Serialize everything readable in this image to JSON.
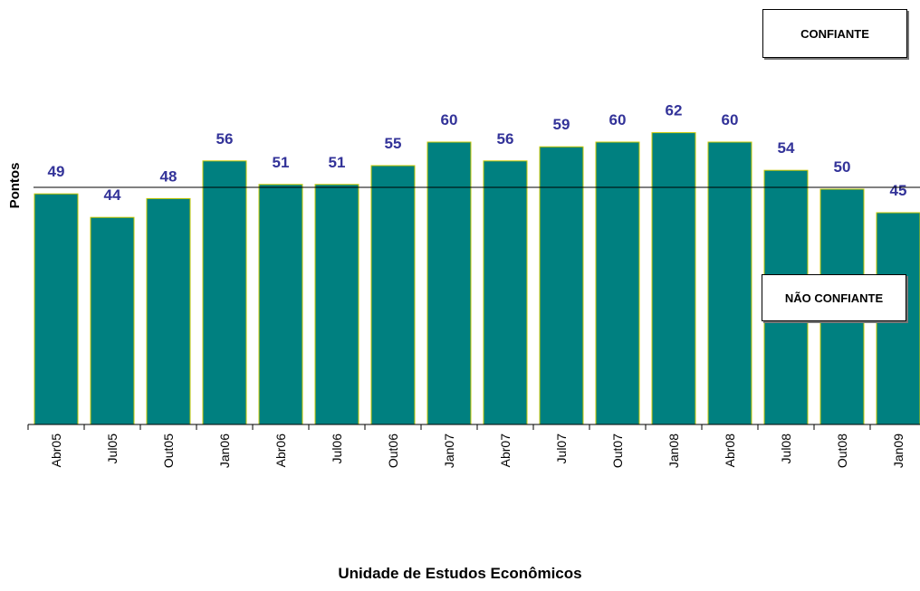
{
  "chart_data": {
    "type": "bar",
    "categories": [
      "Abr05",
      "Jul05",
      "Out05",
      "Jan06",
      "Abr06",
      "Jul06",
      "Out06",
      "Jan07",
      "Abr07",
      "Jul07",
      "Out07",
      "Jan08",
      "Abr08",
      "Jul08",
      "Out08",
      "Jan09"
    ],
    "values": [
      49,
      44,
      48,
      56,
      51,
      51,
      55,
      60,
      56,
      59,
      60,
      62,
      60,
      54,
      50,
      45
    ],
    "ylabel": "Pontos",
    "xlabel": "",
    "reference_line": 50,
    "grid": false,
    "colors": {
      "bar": "#008080",
      "bar_border": "#c8c800",
      "value_label": "#333399"
    }
  },
  "annotations": {
    "confiante": "CONFIANTE",
    "nao_confiante": "NÃO CONFIANTE"
  },
  "footer": "Unidade de Estudos Econômicos"
}
